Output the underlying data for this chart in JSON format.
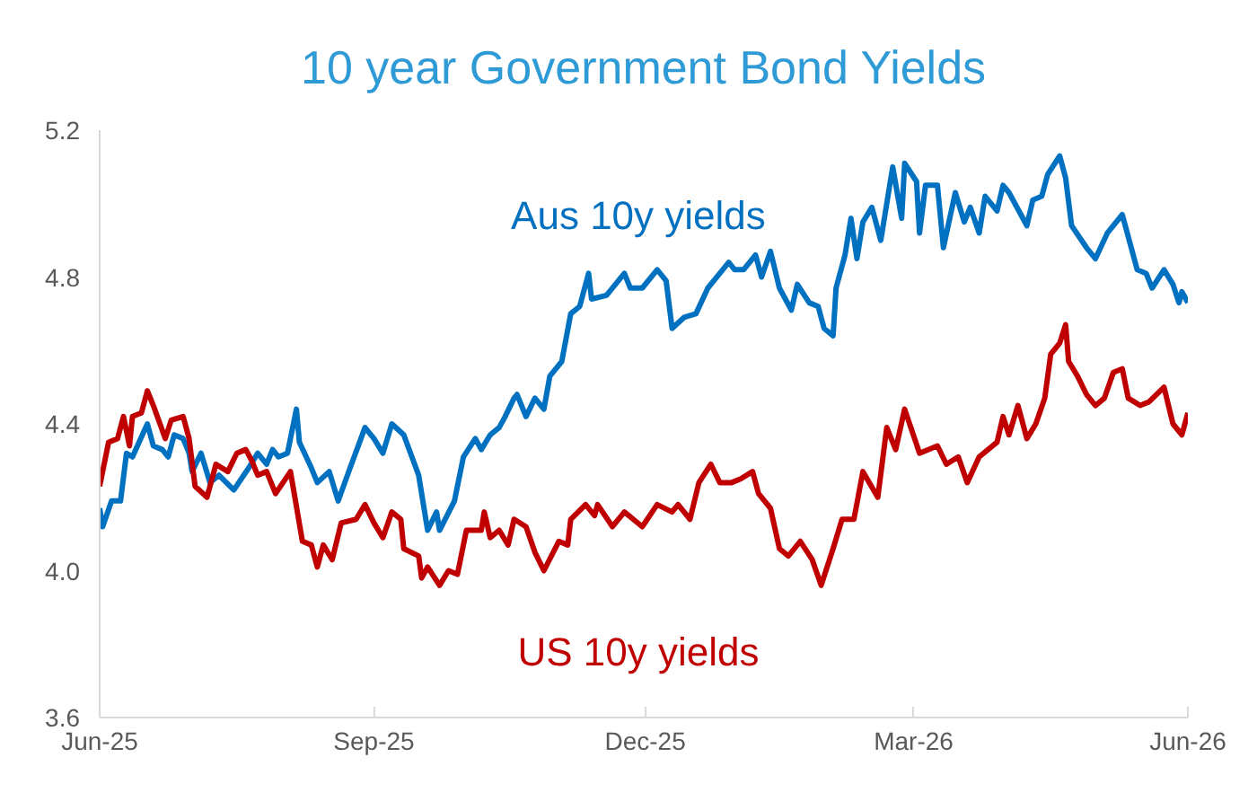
{
  "chart_data": {
    "type": "line",
    "title": "10 year Government Bond Yields",
    "xlim": [
      "2025-06-01",
      "2026-06-01"
    ],
    "xticks": [
      {
        "value": "2025-06-01",
        "label": "Jun-25"
      },
      {
        "value": "2025-09-01",
        "label": "Sep-25"
      },
      {
        "value": "2025-12-01",
        "label": "Dec-25"
      },
      {
        "value": "2026-03-01",
        "label": "Mar-26"
      },
      {
        "value": "2026-06-01",
        "label": "Jun-26"
      }
    ],
    "ylim": [
      3.6,
      5.2
    ],
    "yticks": [
      3.6,
      {
        "value": 4.0,
        "label": "4.0"
      },
      4.4,
      4.8,
      5.2
    ],
    "grid": false,
    "legend": false,
    "line_style": "solid",
    "marker": "none",
    "series": [
      {
        "name": "Aus 10y yields",
        "color": "#0070c0",
        "x": [
          "2025-06-01",
          "2025-06-02",
          "2025-06-05",
          "2025-06-08",
          "2025-06-10",
          "2025-06-12",
          "2025-06-17",
          "2025-06-19",
          "2025-06-22",
          "2025-06-24",
          "2025-06-26",
          "2025-06-29",
          "2025-07-01",
          "2025-07-02",
          "2025-07-05",
          "2025-07-08",
          "2025-07-11",
          "2025-07-16",
          "2025-07-21",
          "2025-07-24",
          "2025-07-27",
          "2025-07-29",
          "2025-07-31",
          "2025-08-03",
          "2025-08-06",
          "2025-08-07",
          "2025-08-11",
          "2025-08-13",
          "2025-08-17",
          "2025-08-20",
          "2025-08-24",
          "2025-08-29",
          "2025-09-01",
          "2025-09-04",
          "2025-09-07",
          "2025-09-11",
          "2025-09-16",
          "2025-09-19",
          "2025-09-22",
          "2025-09-23",
          "2025-09-28",
          "2025-10-01",
          "2025-10-05",
          "2025-10-07",
          "2025-10-10",
          "2025-10-13",
          "2025-10-15",
          "2025-10-18",
          "2025-10-19",
          "2025-10-22",
          "2025-10-25",
          "2025-10-28",
          "2025-10-30",
          "2025-11-03",
          "2025-11-06",
          "2025-11-09",
          "2025-11-12",
          "2025-11-13",
          "2025-11-18",
          "2025-11-24",
          "2025-11-26",
          "2025-11-30",
          "2025-12-05",
          "2025-12-08",
          "2025-12-10",
          "2025-12-14",
          "2025-12-18",
          "2025-12-22",
          "2025-12-26",
          "2025-12-29",
          "2025-12-31",
          "2026-01-03",
          "2026-01-07",
          "2026-01-09",
          "2026-01-12",
          "2026-01-15",
          "2026-01-19",
          "2026-01-21",
          "2026-01-25",
          "2026-01-28",
          "2026-01-30",
          "2026-02-02",
          "2026-02-03",
          "2026-02-06",
          "2026-02-08",
          "2026-02-10",
          "2026-02-12",
          "2026-02-15",
          "2026-02-18",
          "2026-02-22",
          "2026-02-25",
          "2026-02-26",
          "2026-03-02",
          "2026-03-03",
          "2026-03-05",
          "2026-03-09",
          "2026-03-11",
          "2026-03-15",
          "2026-03-18",
          "2026-03-20",
          "2026-03-23",
          "2026-03-25",
          "2026-03-29",
          "2026-03-31",
          "2026-04-02",
          "2026-04-08",
          "2026-04-10",
          "2026-04-13",
          "2026-04-15",
          "2026-04-19",
          "2026-04-21",
          "2026-04-23",
          "2026-04-28",
          "2026-05-01",
          "2026-05-05",
          "2026-05-10",
          "2026-05-15",
          "2026-05-18",
          "2026-05-20",
          "2026-05-24",
          "2026-05-27",
          "2026-05-29",
          "2026-05-30",
          "2026-06-01"
        ],
        "values": [
          4.17,
          4.12,
          4.19,
          4.19,
          4.32,
          4.31,
          4.4,
          4.34,
          4.33,
          4.31,
          4.37,
          4.36,
          4.32,
          4.27,
          4.32,
          4.24,
          4.26,
          4.22,
          4.28,
          4.32,
          4.29,
          4.33,
          4.31,
          4.32,
          4.44,
          4.35,
          4.28,
          4.24,
          4.27,
          4.19,
          4.28,
          4.39,
          4.36,
          4.32,
          4.4,
          4.37,
          4.26,
          4.11,
          4.16,
          4.11,
          4.19,
          4.31,
          4.36,
          4.33,
          4.37,
          4.39,
          4.42,
          4.47,
          4.48,
          4.42,
          4.47,
          4.44,
          4.53,
          4.57,
          4.7,
          4.72,
          4.81,
          4.74,
          4.75,
          4.81,
          4.77,
          4.77,
          4.82,
          4.79,
          4.66,
          4.69,
          4.7,
          4.77,
          4.81,
          4.84,
          4.82,
          4.82,
          4.86,
          4.8,
          4.87,
          4.77,
          4.71,
          4.78,
          4.73,
          4.72,
          4.66,
          4.64,
          4.77,
          4.86,
          4.96,
          4.85,
          4.95,
          4.99,
          4.9,
          5.1,
          4.96,
          5.11,
          5.06,
          4.92,
          5.05,
          5.05,
          4.88,
          5.03,
          4.95,
          4.99,
          4.92,
          5.02,
          4.98,
          5.05,
          5.03,
          4.94,
          5.01,
          5.02,
          5.08,
          5.13,
          5.07,
          4.94,
          4.88,
          4.85,
          4.92,
          4.97,
          4.82,
          4.81,
          4.77,
          4.82,
          4.78,
          4.73,
          4.76,
          4.73
        ]
      },
      {
        "name": "US 10y yields",
        "color": "#c00000",
        "x": [
          "2025-06-01",
          "2025-06-04",
          "2025-06-07",
          "2025-06-09",
          "2025-06-11",
          "2025-06-12",
          "2025-06-15",
          "2025-06-17",
          "2025-06-19",
          "2025-06-23",
          "2025-06-25",
          "2025-06-29",
          "2025-07-01",
          "2025-07-03",
          "2025-07-07",
          "2025-07-10",
          "2025-07-14",
          "2025-07-17",
          "2025-07-20",
          "2025-07-22",
          "2025-07-24",
          "2025-07-27",
          "2025-07-30",
          "2025-08-04",
          "2025-08-08",
          "2025-08-11",
          "2025-08-13",
          "2025-08-15",
          "2025-08-18",
          "2025-08-21",
          "2025-08-26",
          "2025-08-29",
          "2025-09-01",
          "2025-09-04",
          "2025-09-07",
          "2025-09-10",
          "2025-09-11",
          "2025-09-16",
          "2025-09-17",
          "2025-09-19",
          "2025-09-23",
          "2025-09-26",
          "2025-09-29",
          "2025-10-02",
          "2025-10-07",
          "2025-10-08",
          "2025-10-10",
          "2025-10-13",
          "2025-10-16",
          "2025-10-18",
          "2025-10-22",
          "2025-10-25",
          "2025-10-28",
          "2025-11-02",
          "2025-11-05",
          "2025-11-06",
          "2025-11-11",
          "2025-11-14",
          "2025-11-15",
          "2025-11-20",
          "2025-11-24",
          "2025-11-30",
          "2025-12-05",
          "2025-12-10",
          "2025-12-12",
          "2025-12-16",
          "2025-12-19",
          "2025-12-23",
          "2025-12-26",
          "2025-12-30",
          "2026-01-02",
          "2026-01-06",
          "2026-01-08",
          "2026-01-12",
          "2026-01-15",
          "2026-01-18",
          "2026-01-22",
          "2026-01-26",
          "2026-01-29",
          "2026-02-02",
          "2026-02-05",
          "2026-02-09",
          "2026-02-12",
          "2026-02-17",
          "2026-02-20",
          "2026-02-23",
          "2026-02-26",
          "2026-03-03",
          "2026-03-09",
          "2026-03-12",
          "2026-03-16",
          "2026-03-19",
          "2026-03-23",
          "2026-03-29",
          "2026-03-31",
          "2026-04-02",
          "2026-04-05",
          "2026-04-08",
          "2026-04-11",
          "2026-04-14",
          "2026-04-16",
          "2026-04-19",
          "2026-04-21",
          "2026-04-22",
          "2026-04-25",
          "2026-04-28",
          "2026-05-01",
          "2026-05-04",
          "2026-05-07",
          "2026-05-10",
          "2026-05-12",
          "2026-05-16",
          "2026-05-19",
          "2026-05-24",
          "2026-05-27",
          "2026-05-30",
          "2026-06-01"
        ],
        "values": [
          4.23,
          4.35,
          4.36,
          4.42,
          4.34,
          4.42,
          4.43,
          4.49,
          4.45,
          4.36,
          4.41,
          4.42,
          4.36,
          4.23,
          4.2,
          4.29,
          4.27,
          4.32,
          4.33,
          4.3,
          4.26,
          4.27,
          4.21,
          4.27,
          4.08,
          4.07,
          4.01,
          4.07,
          4.03,
          4.13,
          4.14,
          4.18,
          4.13,
          4.09,
          4.16,
          4.14,
          4.06,
          4.04,
          3.98,
          4.01,
          3.96,
          4.0,
          3.99,
          4.11,
          4.11,
          4.16,
          4.09,
          4.11,
          4.07,
          4.14,
          4.12,
          4.05,
          4.0,
          4.08,
          4.07,
          4.14,
          4.18,
          4.15,
          4.18,
          4.12,
          4.16,
          4.12,
          4.18,
          4.16,
          4.18,
          4.14,
          4.24,
          4.29,
          4.24,
          4.24,
          4.25,
          4.27,
          4.21,
          4.17,
          4.06,
          4.04,
          4.08,
          4.03,
          3.96,
          4.06,
          4.14,
          4.14,
          4.27,
          4.2,
          4.39,
          4.33,
          4.44,
          4.32,
          4.34,
          4.29,
          4.31,
          4.24,
          4.31,
          4.35,
          4.42,
          4.37,
          4.45,
          4.36,
          4.4,
          4.47,
          4.59,
          4.62,
          4.67,
          4.57,
          4.53,
          4.48,
          4.45,
          4.47,
          4.54,
          4.55,
          4.47,
          4.45,
          4.46,
          4.5,
          4.4,
          4.37,
          4.43
        ]
      }
    ]
  }
}
